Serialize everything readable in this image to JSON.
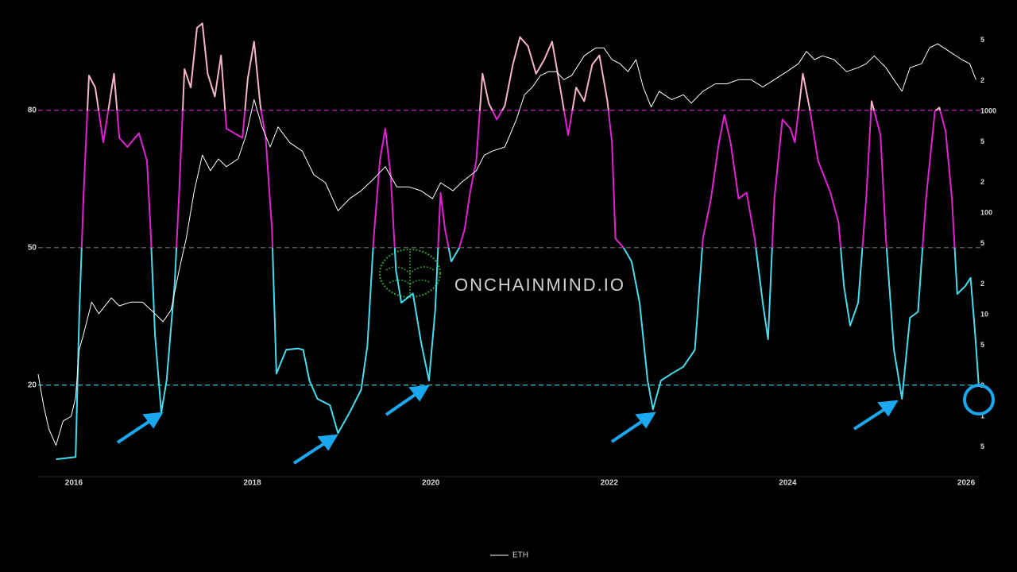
{
  "chart_data": {
    "type": "line",
    "watermark": "ONCHAINMIND.IO",
    "xlim": [
      2015.6,
      2026.16
    ],
    "xticks": [
      2016,
      2018,
      2020,
      2022,
      2024,
      2026
    ],
    "ylim": [
      0,
      100
    ],
    "yticks": [
      20,
      50,
      80
    ],
    "ytick_line_colors": [
      "#2fc6d8",
      "#6a6a6a",
      "#c21fc4"
    ],
    "zone_colors": [
      "#45dcee",
      "#45dcee",
      "#e122d3",
      "#f6b4c9"
    ],
    "y2lim": [
      0.255,
      8110
    ],
    "y2log": true,
    "y2ticks": [
      {
        "value": 5000,
        "label": "5"
      },
      {
        "value": 2000,
        "label": "2"
      },
      1000,
      {
        "value": 500,
        "label": "5"
      },
      {
        "value": 200,
        "label": "2"
      },
      100,
      {
        "value": 50,
        "label": "5"
      },
      {
        "value": 20,
        "label": "2"
      },
      10,
      5,
      2,
      1,
      {
        "value": 0.5,
        "label": "5"
      }
    ],
    "series": [
      {
        "x": [
          2015.8,
          2016.02,
          2016.06,
          2016.11,
          2016.17,
          2016.24,
          2016.33,
          2016.45,
          2016.51,
          2016.6,
          2016.73,
          2016.82,
          2016.86,
          2016.91,
          2016.98,
          2017.04,
          2017.13,
          2017.18,
          2017.24,
          2017.31,
          2017.38,
          2017.44,
          2017.5,
          2017.58,
          2017.65,
          2017.71,
          2017.8,
          2017.89,
          2017.95,
          2018.02,
          2018.09,
          2018.15,
          2018.22,
          2018.27,
          2018.38,
          2018.51,
          2018.57,
          2018.64,
          2018.73,
          2018.87,
          2018.96,
          2019.09,
          2019.22,
          2019.29,
          2019.36,
          2019.43,
          2019.49,
          2019.55,
          2019.61,
          2019.67,
          2019.8,
          2019.89,
          2019.98,
          2020.05,
          2020.11,
          2020.16,
          2020.23,
          2020.32,
          2020.38,
          2020.44,
          2020.51,
          2020.58,
          2020.65,
          2020.74,
          2020.83,
          2020.92,
          2021.0,
          2021.09,
          2021.18,
          2021.27,
          2021.36,
          2021.45,
          2021.54,
          2021.63,
          2021.72,
          2021.81,
          2021.89,
          2021.98,
          2022.03,
          2022.07,
          2022.16,
          2022.25,
          2022.34,
          2022.43,
          2022.49,
          2022.58,
          2022.7,
          2022.83,
          2022.96,
          2023.05,
          2023.14,
          2023.23,
          2023.29,
          2023.36,
          2023.45,
          2023.54,
          2023.63,
          2023.72,
          2023.78,
          2023.85,
          2023.94,
          2024.03,
          2024.08,
          2024.17,
          2024.25,
          2024.34,
          2024.48,
          2024.57,
          2024.63,
          2024.7,
          2024.79,
          2024.88,
          2024.94,
          2025.04,
          2025.1,
          2025.19,
          2025.28,
          2025.37,
          2025.46,
          2025.55,
          2025.65,
          2025.7,
          2025.77,
          2025.84,
          2025.9,
          2025.99,
          2026.05,
          2026.1,
          2026.14
        ],
        "values": [
          3.8,
          4.3,
          35,
          62,
          87.6,
          85,
          73,
          88,
          74,
          72,
          75,
          69,
          54,
          31,
          14,
          21,
          42,
          62,
          89,
          85,
          98,
          99,
          88,
          83,
          92,
          76,
          75,
          74,
          87,
          95,
          81,
          74,
          54,
          22.5,
          27.7,
          28,
          27.7,
          21,
          17,
          15.6,
          9.5,
          14,
          19,
          28.6,
          52,
          69,
          76,
          66,
          45,
          38,
          40,
          29.5,
          21,
          36.4,
          62,
          54,
          47,
          50,
          54,
          62,
          69,
          88,
          81.5,
          78,
          81,
          90,
          96,
          94,
          88,
          91,
          95,
          85,
          74.6,
          85,
          82,
          90,
          92,
          82,
          73,
          52,
          50,
          47,
          38,
          21,
          14.7,
          21,
          22.5,
          24,
          27.7,
          52,
          60.7,
          73,
          79,
          73,
          60.7,
          62,
          52,
          38,
          30,
          60.7,
          78,
          76,
          73,
          88,
          80,
          69,
          62,
          55.5,
          41.6,
          33,
          38,
          60.7,
          82,
          74.6,
          52,
          27.7,
          17,
          34.7,
          36,
          60.7,
          79.8,
          80.6,
          75.4,
          60.7,
          39.9,
          41.6,
          43.4,
          31.2,
          20
        ]
      },
      {
        "name": "ETH",
        "color": "#ffffff",
        "axis": "y2",
        "x": [
          2015.6,
          2015.66,
          2015.72,
          2015.8,
          2015.88,
          2015.97,
          2016.02,
          2016.06,
          2016.11,
          2016.2,
          2016.28,
          2016.42,
          2016.51,
          2016.64,
          2016.77,
          2016.91,
          2017.0,
          2017.09,
          2017.18,
          2017.26,
          2017.35,
          2017.44,
          2017.53,
          2017.62,
          2017.71,
          2017.84,
          2017.93,
          2018.02,
          2018.11,
          2018.2,
          2018.29,
          2018.42,
          2018.56,
          2018.69,
          2018.82,
          2018.96,
          2019.09,
          2019.22,
          2019.36,
          2019.49,
          2019.62,
          2019.76,
          2019.89,
          2020.02,
          2020.11,
          2020.25,
          2020.34,
          2020.51,
          2020.6,
          2020.69,
          2020.83,
          2020.96,
          2021.05,
          2021.14,
          2021.23,
          2021.32,
          2021.41,
          2021.49,
          2021.58,
          2021.72,
          2021.85,
          2021.94,
          2022.03,
          2022.12,
          2022.21,
          2022.3,
          2022.38,
          2022.47,
          2022.56,
          2022.7,
          2022.83,
          2022.92,
          2023.05,
          2023.19,
          2023.32,
          2023.45,
          2023.59,
          2023.72,
          2023.85,
          2023.99,
          2024.12,
          2024.21,
          2024.3,
          2024.39,
          2024.52,
          2024.66,
          2024.79,
          2024.88,
          2024.97,
          2025.1,
          2025.19,
          2025.28,
          2025.37,
          2025.5,
          2025.59,
          2025.68,
          2025.81,
          2025.95,
          2026.04,
          2026.11
        ],
        "values": [
          2.6,
          1.29,
          0.75,
          0.52,
          0.9,
          1.0,
          1.54,
          4.5,
          6.5,
          13.3,
          10.2,
          14.6,
          12.2,
          13.3,
          13.3,
          10.2,
          8.5,
          11.1,
          27.4,
          56,
          165,
          370,
          260,
          340,
          285,
          340,
          580,
          1300,
          700,
          445,
          700,
          490,
          405,
          237,
          198,
          105,
          138,
          165,
          216,
          285,
          180,
          180,
          165,
          138,
          198,
          165,
          198,
          260,
          370,
          405,
          445,
          830,
          1450,
          1730,
          2250,
          2450,
          2450,
          2040,
          2250,
          3500,
          4200,
          4200,
          3220,
          2930,
          2450,
          3220,
          1730,
          1100,
          1570,
          1300,
          1450,
          1200,
          1570,
          1860,
          1860,
          2040,
          2040,
          1730,
          2040,
          2450,
          2930,
          3870,
          3220,
          3500,
          3220,
          2450,
          2680,
          2930,
          3500,
          2680,
          2040,
          1570,
          2680,
          2930,
          4200,
          4600,
          3870,
          3220,
          2930,
          2040
        ]
      }
    ]
  }
}
